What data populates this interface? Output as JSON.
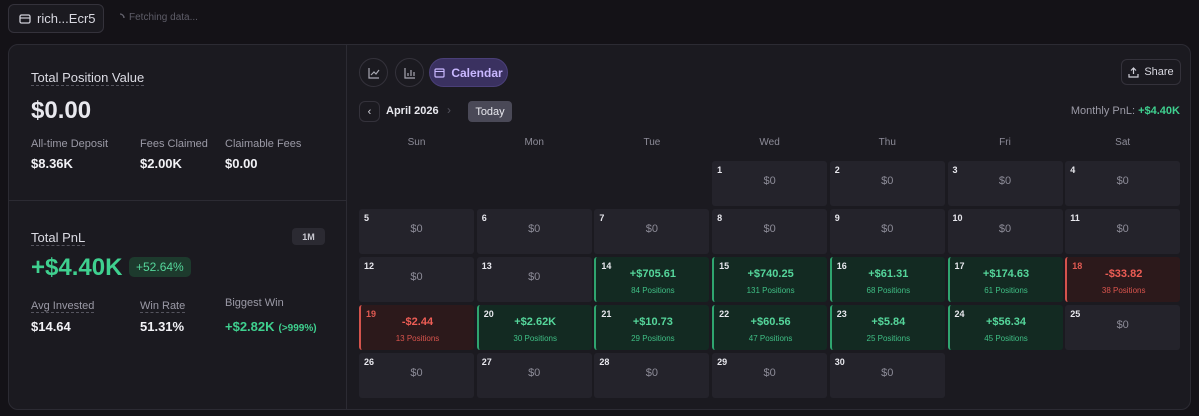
{
  "wallet": {
    "label": "rich...Ecr5",
    "status": "Fetching data..."
  },
  "summary": {
    "title": "Total Position Value",
    "value": "$0.00",
    "stats": [
      {
        "label": "All-time Deposit",
        "value": "$8.36K"
      },
      {
        "label": "Fees Claimed",
        "value": "$2.00K"
      },
      {
        "label": "Claimable Fees",
        "value": "$0.00"
      }
    ]
  },
  "pnl": {
    "title": "Total PnL",
    "period": "1M",
    "value": "+$4.40K",
    "percent": "+52.64%",
    "stats": [
      {
        "label": "Avg Invested",
        "value": "$14.64"
      },
      {
        "label": "Win Rate",
        "value": "51.31%"
      },
      {
        "label": "Biggest Win",
        "value": "+$2.82K",
        "note": "(>999%)"
      }
    ]
  },
  "toolbar": {
    "tab": "Calendar",
    "share": "Share"
  },
  "calendar": {
    "month": "April 2026",
    "today": "Today",
    "monthly_pnl_label": "Monthly PnL:",
    "monthly_pnl": "+$4.40K",
    "weekdays": [
      "Sun",
      "Mon",
      "Tue",
      "Wed",
      "Thu",
      "Fri",
      "Sat"
    ],
    "weeks": [
      [
        null,
        null,
        null,
        {
          "day": "1",
          "pnl": "$0"
        },
        {
          "day": "2",
          "pnl": "$0"
        },
        {
          "day": "3",
          "pnl": "$0"
        },
        {
          "day": "4",
          "pnl": "$0"
        }
      ],
      [
        {
          "day": "5",
          "pnl": "$0"
        },
        {
          "day": "6",
          "pnl": "$0"
        },
        {
          "day": "7",
          "pnl": "$0"
        },
        {
          "day": "8",
          "pnl": "$0"
        },
        {
          "day": "9",
          "pnl": "$0"
        },
        {
          "day": "10",
          "pnl": "$0"
        },
        {
          "day": "11",
          "pnl": "$0"
        }
      ],
      [
        {
          "day": "12",
          "pnl": "$0"
        },
        {
          "day": "13",
          "pnl": "$0"
        },
        {
          "day": "14",
          "pnl": "+$705.61",
          "positions": "84 Positions"
        },
        {
          "day": "15",
          "pnl": "+$740.25",
          "positions": "131 Positions"
        },
        {
          "day": "16",
          "pnl": "+$61.31",
          "positions": "68 Positions"
        },
        {
          "day": "17",
          "pnl": "+$174.63",
          "positions": "61 Positions"
        },
        {
          "day": "18",
          "pnl": "-$33.82",
          "positions": "38 Positions"
        }
      ],
      [
        {
          "day": "19",
          "pnl": "-$2.44",
          "positions": "13 Positions"
        },
        {
          "day": "20",
          "pnl": "+$2.62K",
          "positions": "30 Positions"
        },
        {
          "day": "21",
          "pnl": "+$10.73",
          "positions": "29 Positions"
        },
        {
          "day": "22",
          "pnl": "+$60.56",
          "positions": "47 Positions"
        },
        {
          "day": "23",
          "pnl": "+$5.84",
          "positions": "25 Positions"
        },
        {
          "day": "24",
          "pnl": "+$56.34",
          "positions": "45 Positions"
        },
        {
          "day": "25",
          "pnl": "$0"
        }
      ],
      [
        {
          "day": "26",
          "pnl": "$0"
        },
        {
          "day": "27",
          "pnl": "$0"
        },
        {
          "day": "28",
          "pnl": "$0"
        },
        {
          "day": "29",
          "pnl": "$0"
        },
        {
          "day": "30",
          "pnl": "$0"
        }
      ]
    ]
  }
}
